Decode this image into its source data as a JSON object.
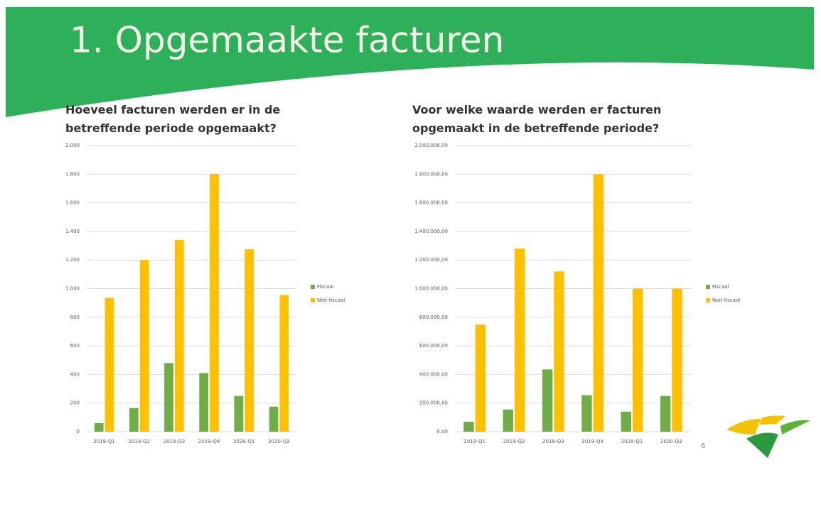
{
  "title": "1. Opgemaakte facturen",
  "page_number": "6",
  "chart_data": [
    {
      "type": "bar",
      "title": "Hoeveel facturen werden er in de betreffende periode opgemaakt?",
      "categories": [
        "2019-Q1",
        "2019-Q2",
        "2019-Q3",
        "2019-Q4",
        "2020-Q1",
        "2020-Q2"
      ],
      "series": [
        {
          "name": "Fiscaal",
          "color": "#70ad47",
          "values": [
            60,
            165,
            480,
            410,
            250,
            175
          ]
        },
        {
          "name": "Niet-fiscaal",
          "color": "#ffc000",
          "values": [
            935,
            1200,
            1340,
            1800,
            1275,
            955
          ]
        }
      ],
      "ylim": [
        0,
        2000
      ],
      "yticks": [
        0,
        200,
        400,
        600,
        800,
        {
          "value": 1000,
          "label": "1.000"
        },
        {
          "value": 1200,
          "label": "1.200"
        },
        {
          "value": 1400,
          "label": "1.400"
        },
        {
          "value": 1600,
          "label": "1.600"
        },
        {
          "value": 1800,
          "label": "1.800"
        },
        {
          "value": 2000,
          "label": "2.000"
        }
      ],
      "grid": true,
      "legend": "right"
    },
    {
      "type": "bar",
      "title": "Voor welke waarde werden er facturen opgemaakt in de betreffende periode?",
      "categories": [
        "2019-Q1",
        "2019-Q2",
        "2019-Q3",
        "2019-Q4",
        "2020-Q1",
        "2020-Q2"
      ],
      "series": [
        {
          "name": "Fiscaal",
          "color": "#70ad47",
          "values": [
            70000,
            155000,
            435000,
            255000,
            140000,
            250000
          ]
        },
        {
          "name": "Niet-fiscaal",
          "color": "#ffc000",
          "values": [
            750000,
            1280000,
            1120000,
            1800000,
            1000000,
            1000000
          ]
        }
      ],
      "ylim": [
        0,
        2000000
      ],
      "yticks": [
        {
          "value": 0,
          "label": "0,00"
        },
        {
          "value": 200000,
          "label": "200.000,00"
        },
        {
          "value": 400000,
          "label": "400.000,00"
        },
        {
          "value": 600000,
          "label": "600.000,00"
        },
        {
          "value": 800000,
          "label": "800.000,00"
        },
        {
          "value": 1000000,
          "label": "1.000.000,00"
        },
        {
          "value": 1200000,
          "label": "1.200.000,00"
        },
        {
          "value": 1400000,
          "label": "1.400.000,00"
        },
        {
          "value": 1600000,
          "label": "1.600.000,00"
        },
        {
          "value": 1800000,
          "label": "1.800.000,00"
        },
        {
          "value": 2000000,
          "label": "2.000.000,00"
        }
      ],
      "grid": true,
      "legend": "right"
    }
  ]
}
